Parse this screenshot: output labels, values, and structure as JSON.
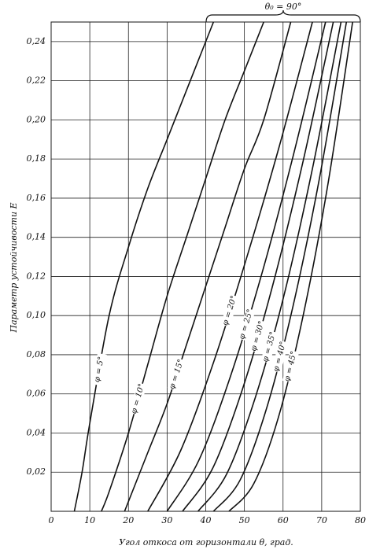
{
  "chart_data": {
    "type": "line",
    "annotation": "θ₀ = 90°",
    "xlabel": "Угол откоса от горизонтали θ, град.",
    "ylabel": "Параметр устойчивости E",
    "xlim": [
      0,
      80
    ],
    "ylim": [
      0,
      0.25
    ],
    "xticks": [
      0,
      10,
      20,
      30,
      40,
      50,
      60,
      70,
      80
    ],
    "yticks": [
      {
        "value": 0.02,
        "label": "0,02"
      },
      {
        "value": 0.04,
        "label": "0,04"
      },
      {
        "value": 0.06,
        "label": "0,06"
      },
      {
        "value": 0.08,
        "label": "0,08"
      },
      {
        "value": 0.1,
        "label": "0,10"
      },
      {
        "value": 0.12,
        "label": "0,12"
      },
      {
        "value": 0.14,
        "label": "0,14"
      },
      {
        "value": 0.16,
        "label": "0,16"
      },
      {
        "value": 0.18,
        "label": "0,18"
      },
      {
        "value": 0.2,
        "label": "0,20"
      },
      {
        "value": 0.22,
        "label": "0,22"
      },
      {
        "value": 0.24,
        "label": "0,24"
      }
    ],
    "grid": true,
    "color": "#111111",
    "series": [
      {
        "name": "φ = 5°",
        "x": [
          6,
          8,
          10,
          15,
          20,
          25,
          30,
          35,
          42
        ],
        "values": [
          0,
          0.02,
          0.045,
          0.1,
          0.135,
          0.165,
          0.19,
          0.215,
          0.25
        ]
      },
      {
        "name": "φ = 10°",
        "x": [
          13,
          15,
          20,
          25,
          30,
          35,
          40,
          45,
          50,
          55
        ],
        "values": [
          0,
          0.01,
          0.04,
          0.075,
          0.11,
          0.14,
          0.17,
          0.2,
          0.225,
          0.25
        ]
      },
      {
        "name": "φ = 15°",
        "x": [
          19,
          25,
          30,
          35,
          40,
          45,
          50,
          55,
          62
        ],
        "values": [
          0,
          0.03,
          0.055,
          0.085,
          0.115,
          0.145,
          0.175,
          0.2,
          0.25
        ]
      },
      {
        "name": "φ = 20°",
        "x": [
          25,
          33.5,
          42,
          50.5,
          59.1,
          67.6
        ],
        "values": [
          0,
          0.031,
          0.076,
          0.129,
          0.187,
          0.25
        ]
      },
      {
        "name": "φ = 25°",
        "x": [
          30,
          38.2,
          46.4,
          54.6,
          62.8,
          71
        ],
        "values": [
          0,
          0.026,
          0.069,
          0.122,
          0.183,
          0.25
        ]
      },
      {
        "name": "φ = 30°",
        "x": [
          34,
          41.8,
          49.6,
          57.4,
          65.2,
          73
        ],
        "values": [
          0,
          0.022,
          0.063,
          0.116,
          0.179,
          0.25
        ]
      },
      {
        "name": "φ = 35°",
        "x": [
          38,
          45.4,
          52.8,
          60.2,
          67.6,
          75
        ],
        "values": [
          0,
          0.019,
          0.058,
          0.11,
          0.175,
          0.25
        ]
      },
      {
        "name": "φ = 40°",
        "x": [
          42,
          48.9,
          55.8,
          62.6,
          69.5,
          76.4
        ],
        "values": [
          0,
          0.016,
          0.053,
          0.105,
          0.171,
          0.25
        ]
      },
      {
        "name": "φ = 45°",
        "x": [
          46,
          52.4,
          58.8,
          65.2,
          71.6,
          78
        ],
        "values": [
          0,
          0.014,
          0.048,
          0.1,
          0.167,
          0.25
        ]
      }
    ]
  }
}
